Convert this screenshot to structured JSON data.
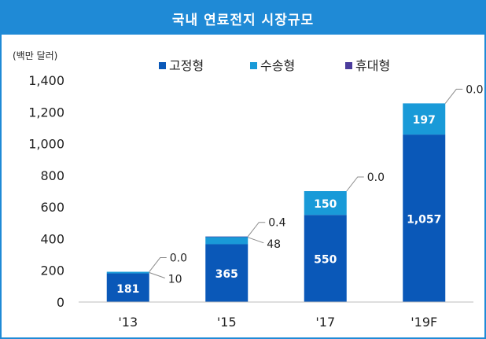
{
  "chart_data": {
    "type": "bar",
    "stacked": true,
    "title": "국내 연료전지 시장규모",
    "unit_label": "(백만 달러)",
    "categories": [
      "'13",
      "'15",
      "'17",
      "'19F"
    ],
    "series": [
      {
        "name": "고정형",
        "values": [
          181,
          365,
          550,
          1057
        ],
        "color": "#0a58b8"
      },
      {
        "name": "수송형",
        "values": [
          10,
          48,
          150,
          197
        ],
        "color": "#199ad8"
      },
      {
        "name": "휴대형",
        "values": [
          0.0,
          0.4,
          0.0,
          0.0
        ],
        "color": "#4b3c9c"
      }
    ],
    "data_labels": {
      "고정형": [
        "181",
        "365",
        "550",
        "1,057"
      ],
      "수송형": [
        "10",
        "48",
        "150",
        "197"
      ],
      "휴대형": [
        "0.0",
        "0.4",
        "0.0",
        "0.0"
      ]
    },
    "y_ticks": [
      "0",
      "200",
      "400",
      "600",
      "800",
      "1,000",
      "1,200",
      "1,400"
    ],
    "ylim": [
      0,
      1400
    ],
    "legend_position": "top",
    "grid": false
  }
}
